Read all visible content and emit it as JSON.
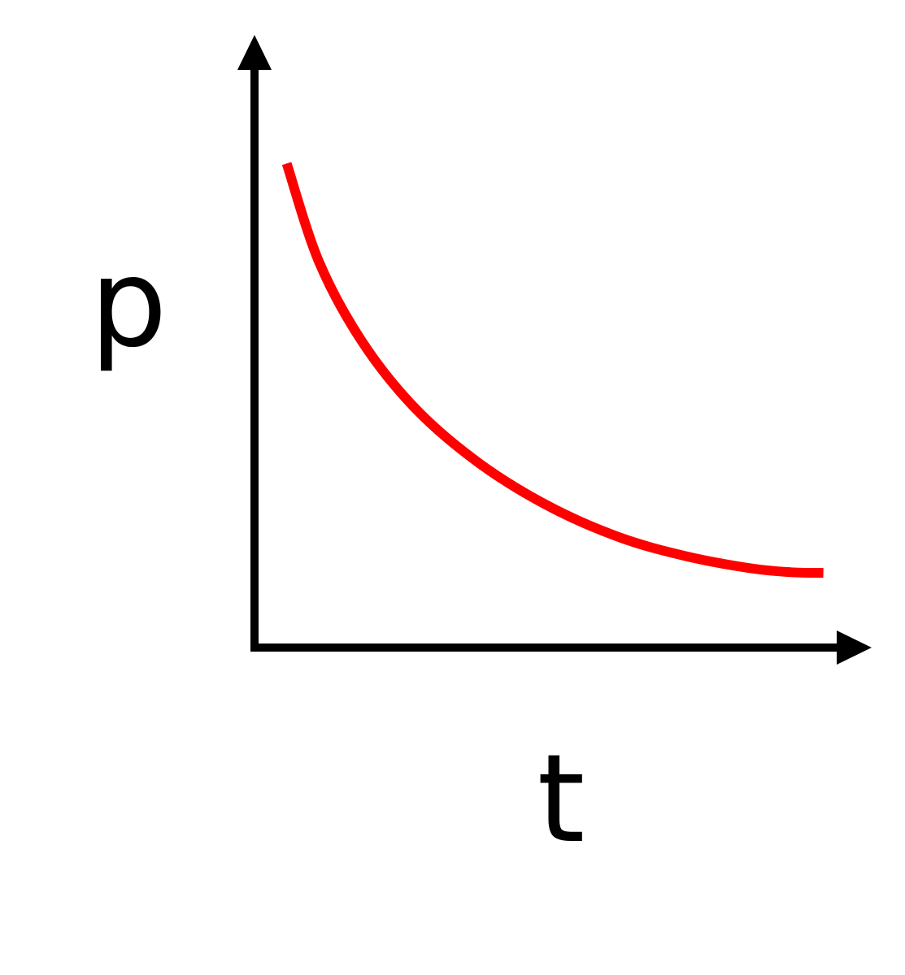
{
  "colors": {
    "axis": "#000000",
    "curve": "#ff0000",
    "background": "#ffffff"
  },
  "chart_data": {
    "type": "line",
    "title": "",
    "xlabel": "t",
    "ylabel": "p",
    "grid": false,
    "legend": "none",
    "ticks": false,
    "xlim": [
      0,
      1.15
    ],
    "ylim": [
      0,
      1.0
    ],
    "series": [
      {
        "x": [
          0.06,
          0.12,
          0.2,
          0.3,
          0.42,
          0.55,
          0.68,
          0.8,
          0.92,
          1.0,
          1.06
        ],
        "y": [
          0.79,
          0.63,
          0.5,
          0.39,
          0.3,
          0.23,
          0.18,
          0.15,
          0.13,
          0.123,
          0.122
        ]
      }
    ]
  }
}
